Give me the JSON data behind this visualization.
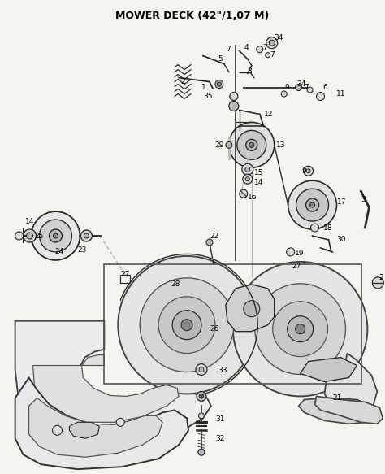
{
  "title": "MOWER DECK (42\"/1,07 M)",
  "title_fontsize": 9,
  "title_fontweight": "bold",
  "bg_color": "#f5f5f0",
  "fig_width": 4.74,
  "fig_height": 5.83,
  "dpi": 100,
  "line_color": "#2a2a2a",
  "light_gray": "#d8d8d8",
  "mid_gray": "#b8b8b8",
  "dark_gray": "#888888"
}
